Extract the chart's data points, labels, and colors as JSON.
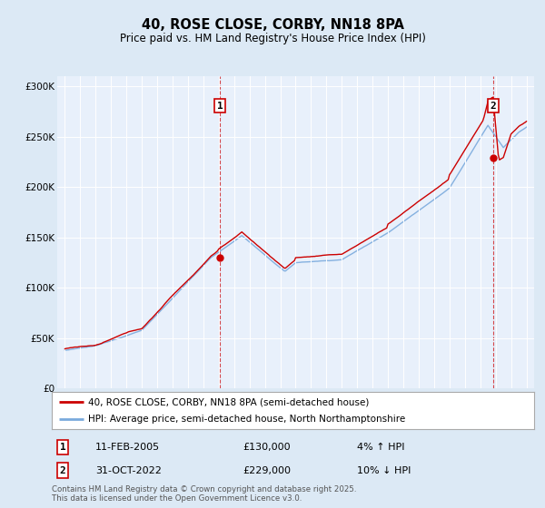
{
  "title": "40, ROSE CLOSE, CORBY, NN18 8PA",
  "subtitle": "Price paid vs. HM Land Registry's House Price Index (HPI)",
  "background_color": "#dce9f5",
  "plot_bg_color": "#e8f0fb",
  "red_line_color": "#cc0000",
  "blue_line_color": "#7aaadd",
  "sale1_date_num": 2005.08,
  "sale1_price": 130000,
  "sale2_date_num": 2022.83,
  "sale2_price": 229000,
  "legend_label_red": "40, ROSE CLOSE, CORBY, NN18 8PA (semi-detached house)",
  "legend_label_blue": "HPI: Average price, semi-detached house, North Northamptonshire",
  "annotation1_label": "1",
  "annotation1_date": "11-FEB-2005",
  "annotation1_price": "£130,000",
  "annotation1_hpi": "4% ↑ HPI",
  "annotation2_label": "2",
  "annotation2_date": "31-OCT-2022",
  "annotation2_price": "£229,000",
  "annotation2_hpi": "10% ↓ HPI",
  "footer": "Contains HM Land Registry data © Crown copyright and database right 2025.\nThis data is licensed under the Open Government Licence v3.0.",
  "ylim_min": 0,
  "ylim_max": 310000,
  "xlim_min": 1994.5,
  "xlim_max": 2025.5
}
